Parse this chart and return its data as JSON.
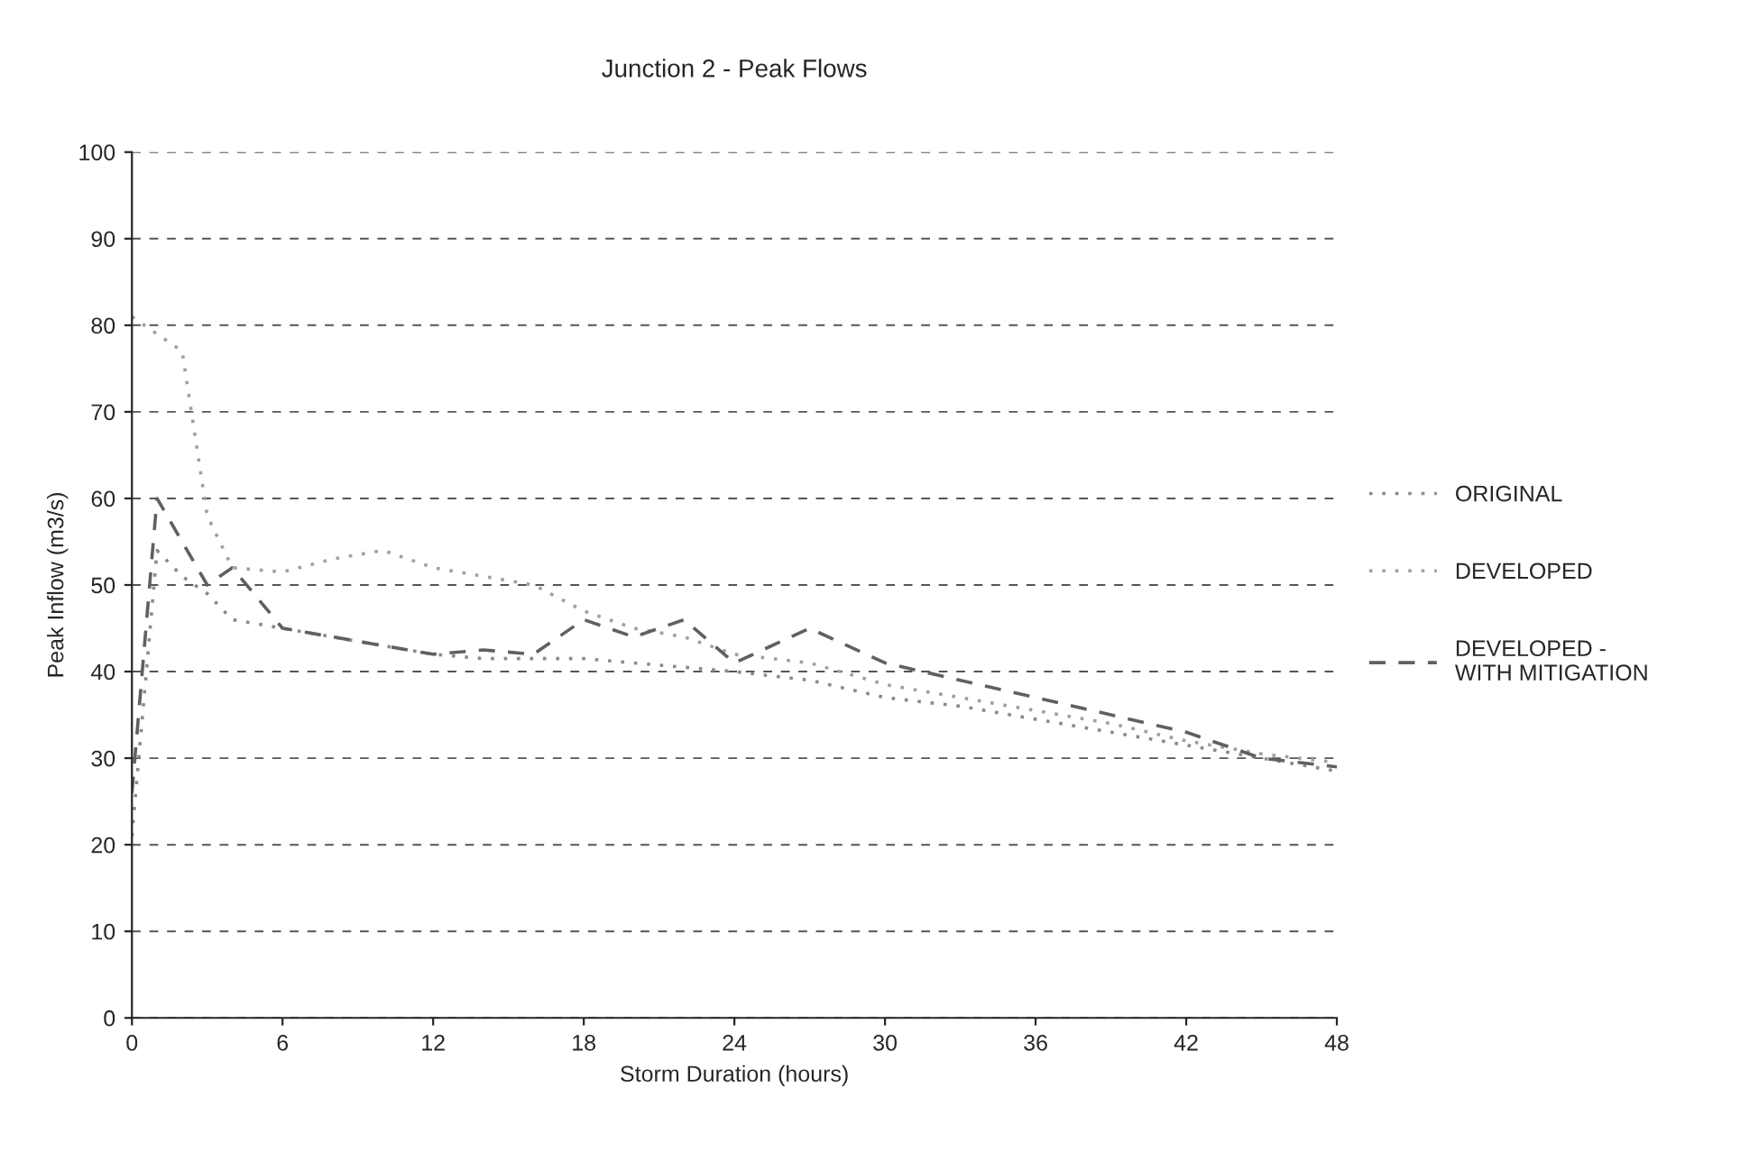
{
  "chart_data": {
    "type": "line",
    "title": "Junction 2 - Peak Flows",
    "xlabel": "Storm Duration (hours)",
    "ylabel": "Peak Inflow (m3/s)",
    "x": [
      0,
      1,
      2,
      3,
      4,
      6,
      8,
      10,
      12,
      14,
      16,
      18,
      20,
      22,
      24,
      27,
      30,
      33,
      36,
      39,
      42,
      45,
      48
    ],
    "series": [
      {
        "name": "ORIGINAL",
        "color": "#8a8a8a",
        "line_style": "dotted",
        "values": [
          21,
          54,
          51,
          49,
          46,
          45,
          44,
          43,
          42,
          41.5,
          41.5,
          41.5,
          41,
          40.5,
          40,
          39,
          37,
          36,
          34.5,
          33,
          31.5,
          30,
          28.5
        ]
      },
      {
        "name": "DEVELOPED",
        "color": "#a0a0a0",
        "line_style": "dotted",
        "values": [
          81,
          79,
          77,
          58,
          52,
          51.5,
          53,
          54,
          52,
          51,
          50,
          47,
          45,
          44,
          42,
          41,
          38.5,
          37,
          35.5,
          34,
          32,
          30.5,
          29.5
        ]
      },
      {
        "name": "DEVELOPED - WITH MITIGATION",
        "color": "#606060",
        "line_style": "dashed",
        "values": [
          26,
          60,
          55,
          50,
          52,
          45,
          44,
          43,
          42,
          42.5,
          42,
          46,
          44,
          46,
          41,
          45,
          41,
          39,
          37,
          35,
          33,
          30,
          29
        ]
      }
    ],
    "xlim": [
      0,
      48
    ],
    "xticks": [
      0,
      6,
      12,
      18,
      24,
      30,
      36,
      42,
      48
    ],
    "ylim": [
      0,
      100
    ],
    "yticks": [
      0,
      10,
      20,
      30,
      40,
      50,
      60,
      70,
      80,
      90,
      100
    ],
    "grid": "y",
    "legend": "right",
    "marker": "none"
  }
}
